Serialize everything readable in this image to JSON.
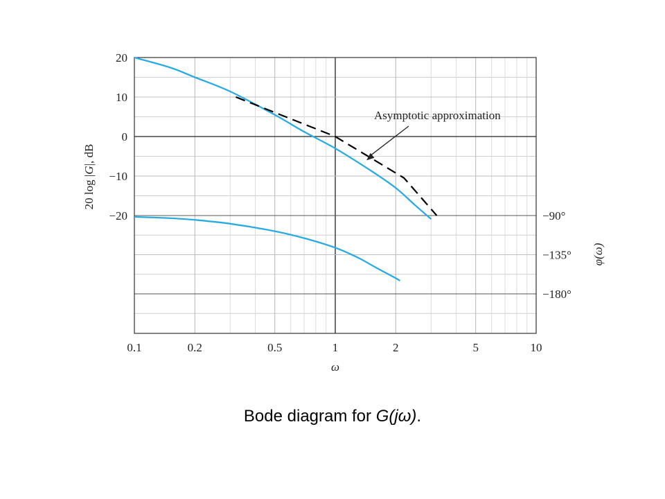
{
  "caption": {
    "prefix": "Bode diagram for ",
    "function": "G(jω)",
    "suffix": "."
  },
  "chart_data": {
    "type": "line",
    "x_scale": "log",
    "xlim": [
      0.1,
      10
    ],
    "xlabel": "ω",
    "x_ticks": [
      {
        "value": 0.1,
        "label": "0.1"
      },
      {
        "value": 0.2,
        "label": "0.2"
      },
      {
        "value": 0.5,
        "label": "0.5"
      },
      {
        "value": 1,
        "label": "1"
      },
      {
        "value": 2,
        "label": "2"
      },
      {
        "value": 5,
        "label": "5"
      },
      {
        "value": 10,
        "label": "10"
      }
    ],
    "y_left": {
      "label_parts": [
        "20 log ",
        "|",
        "G",
        "|",
        ", dB"
      ],
      "ticks": [
        {
          "value": 20,
          "label": "20"
        },
        {
          "value": 10,
          "label": "10"
        },
        {
          "value": 0,
          "label": "0"
        },
        {
          "value": -10,
          "label": "−10"
        },
        {
          "value": -20,
          "label": "−20"
        }
      ]
    },
    "y_right": {
      "label": "φ(ω)",
      "ticks": [
        {
          "value": -90,
          "label": "−90°"
        },
        {
          "value": -135,
          "label": "−135°"
        },
        {
          "value": -180,
          "label": "−180°"
        }
      ]
    },
    "grid": true,
    "series": [
      {
        "kind": "magnitude_db",
        "color": "#29ABE2",
        "style": "solid",
        "points": [
          [
            0.1,
            20
          ],
          [
            0.15,
            17.5
          ],
          [
            0.2,
            15
          ],
          [
            0.3,
            11.4
          ],
          [
            0.5,
            5.5
          ],
          [
            0.7,
            1.2
          ],
          [
            1,
            -3
          ],
          [
            1.5,
            -8.6
          ],
          [
            2,
            -13
          ],
          [
            2.5,
            -17.4
          ],
          [
            3,
            -20.9
          ]
        ]
      },
      {
        "kind": "phase_deg",
        "color": "#29ABE2",
        "style": "solid",
        "points": [
          [
            0.1,
            -91.5
          ],
          [
            0.15,
            -93
          ],
          [
            0.2,
            -95
          ],
          [
            0.3,
            -99.4
          ],
          [
            0.5,
            -108
          ],
          [
            0.7,
            -116
          ],
          [
            1,
            -127
          ],
          [
            1.3,
            -138.5
          ],
          [
            1.6,
            -150
          ],
          [
            2,
            -162
          ],
          [
            2.1,
            -165
          ]
        ]
      },
      {
        "kind": "asymptote_db",
        "color": "#000000",
        "style": "dashed",
        "points": [
          [
            0.32,
            10
          ],
          [
            1,
            0
          ],
          [
            2.2,
            -10.5
          ],
          [
            3.2,
            -20
          ]
        ]
      }
    ],
    "annotations": [
      {
        "text": "Asymptotic approximation",
        "arrow_to": [
          1.5,
          -6
        ]
      }
    ]
  }
}
